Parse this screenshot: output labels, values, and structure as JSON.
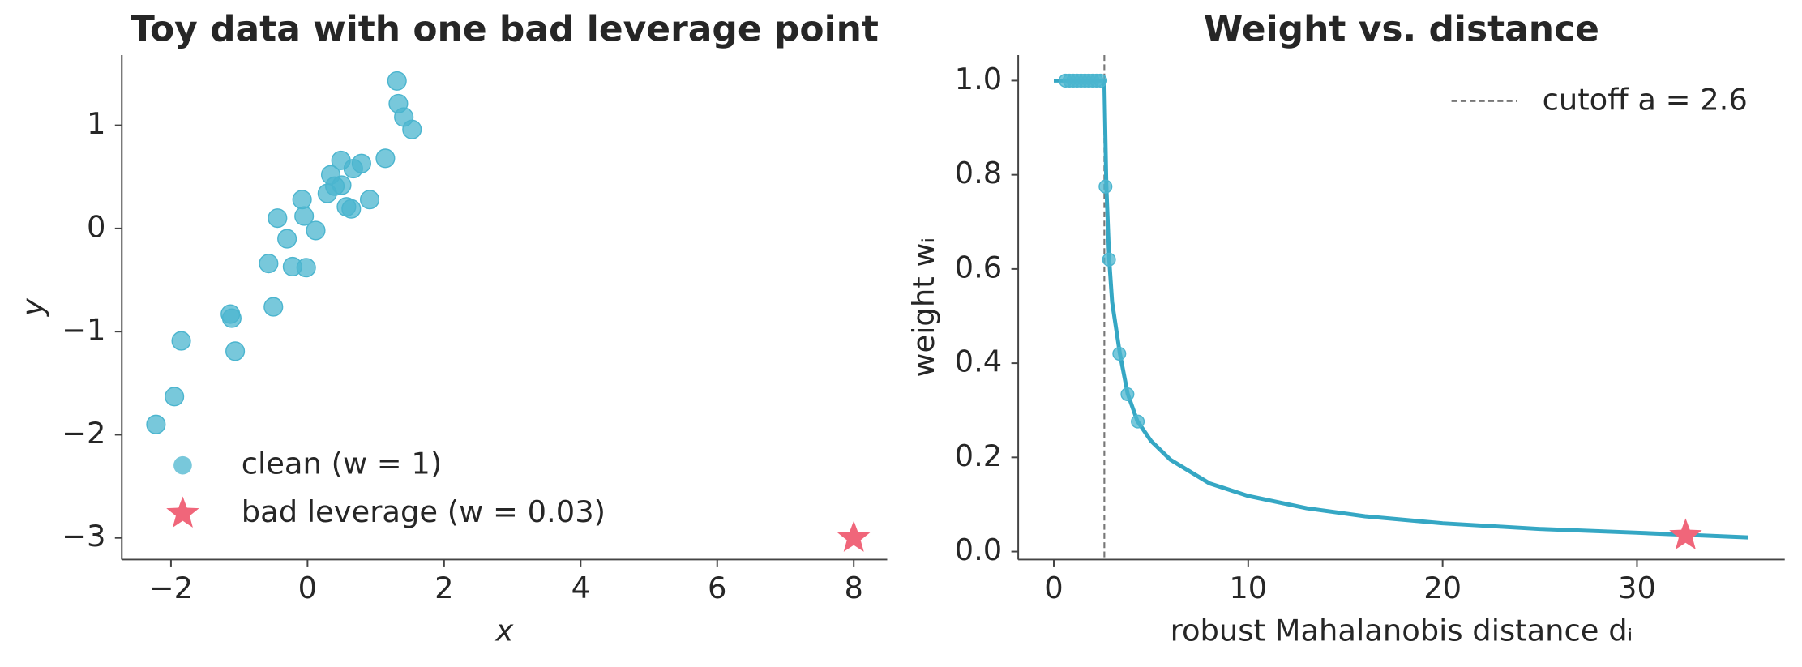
{
  "chart_data": [
    {
      "type": "scatter",
      "title": "Toy data with one bad leverage point",
      "xlabel": "x",
      "ylabel": "y",
      "xlim": [
        -2.72,
        8.49
      ],
      "ylim": [
        -3.21,
        1.68
      ],
      "xticks": [
        {
          "value": -2,
          "label": "−2"
        },
        0,
        2,
        4,
        6,
        8
      ],
      "yticks": [
        {
          "value": -3,
          "label": "−3"
        },
        {
          "value": -2,
          "label": "−2"
        },
        {
          "value": -1,
          "label": "−1"
        },
        0,
        1
      ],
      "legend": "lower left",
      "series": [
        {
          "name": "clean  (w = 1)",
          "marker": "circle",
          "color": "#4bb5cf",
          "x": [
            -2.22,
            -1.95,
            -1.85,
            -1.13,
            -1.11,
            -1.06,
            -0.5,
            -0.57,
            -0.44,
            -0.3,
            -0.22,
            -0.08,
            -0.05,
            -0.02,
            0.12,
            0.29,
            0.34,
            0.4,
            0.49,
            0.5,
            0.57,
            0.64,
            0.67,
            0.79,
            0.91,
            1.14,
            1.31,
            1.33,
            1.41,
            1.53
          ],
          "values": [
            -1.9,
            -1.63,
            -1.09,
            -0.83,
            -0.87,
            -1.19,
            -0.76,
            -0.34,
            0.1,
            -0.1,
            -0.37,
            0.28,
            0.12,
            -0.38,
            -0.02,
            0.34,
            0.52,
            0.41,
            0.66,
            0.42,
            0.21,
            0.19,
            0.58,
            0.63,
            0.28,
            0.68,
            1.43,
            1.21,
            1.08,
            0.96
          ]
        },
        {
          "name": "bad leverage  (w = 0.03)",
          "marker": "star",
          "color": "#f0667a",
          "x": [
            8.0
          ],
          "values": [
            -3.0
          ]
        }
      ]
    },
    {
      "type": "line",
      "title": "Weight vs. distance",
      "xlabel": "robust Mahalanobis distance dᵢ",
      "ylabel": "weight wᵢ",
      "xlim": [
        -1.83,
        37.6
      ],
      "ylim": [
        -0.017,
        1.054
      ],
      "xticks": [
        0,
        10,
        20,
        30
      ],
      "yticks": [
        {
          "value": 0,
          "label": "0.0"
        },
        0.2,
        0.4,
        0.6,
        0.8,
        {
          "value": 1,
          "label": "1.0"
        }
      ],
      "legend": "upper right",
      "vline": {
        "x": 2.6,
        "label": "cutoff a = 2.6",
        "color": "#777777"
      },
      "series": [
        {
          "marker": "line",
          "color": "#35a7c4",
          "x": [
            0,
            2.6,
            2.7,
            2.85,
            3,
            3.4,
            3.8,
            4.3,
            5,
            6,
            8,
            10,
            13,
            16,
            20,
            25,
            30,
            35.7
          ],
          "values": [
            1,
            1,
            0.78,
            0.62,
            0.53,
            0.42,
            0.335,
            0.277,
            0.235,
            0.195,
            0.145,
            0.118,
            0.092,
            0.075,
            0.06,
            0.048,
            0.04,
            0.03
          ]
        },
        {
          "marker": "circle",
          "color": "#4bb5cf",
          "x": [
            0.6,
            0.8,
            1.0,
            1.2,
            1.4,
            1.6,
            1.8,
            2.0,
            2.2,
            2.4,
            2.66,
            2.84,
            3.37,
            3.79,
            4.32
          ],
          "values": [
            1,
            1,
            1,
            1,
            1,
            1,
            1,
            1,
            1,
            1,
            0.775,
            0.62,
            0.42,
            0.334,
            0.276
          ]
        },
        {
          "marker": "star",
          "color": "#f0667a",
          "x": [
            32.5
          ],
          "values": [
            0.034
          ]
        }
      ]
    }
  ]
}
